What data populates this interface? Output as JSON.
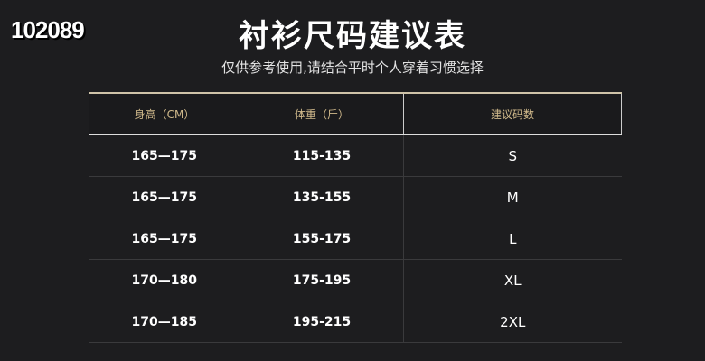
{
  "stamp": "102089",
  "title": "衬衫尺码建议表",
  "subtitle": "仅供参考使用,请结合平时个人穿着习惯选择",
  "table": {
    "headers": [
      "身高（CM）",
      "体重（斤）",
      "建议码数"
    ],
    "rows": [
      [
        "165—175",
        "115-135",
        "S"
      ],
      [
        "165—175",
        "135-155",
        "M"
      ],
      [
        "165—175",
        "155-175",
        "L"
      ],
      [
        "170—180",
        "175-195",
        "XL"
      ],
      [
        "170—185",
        "195-215",
        "2XL"
      ]
    ]
  }
}
